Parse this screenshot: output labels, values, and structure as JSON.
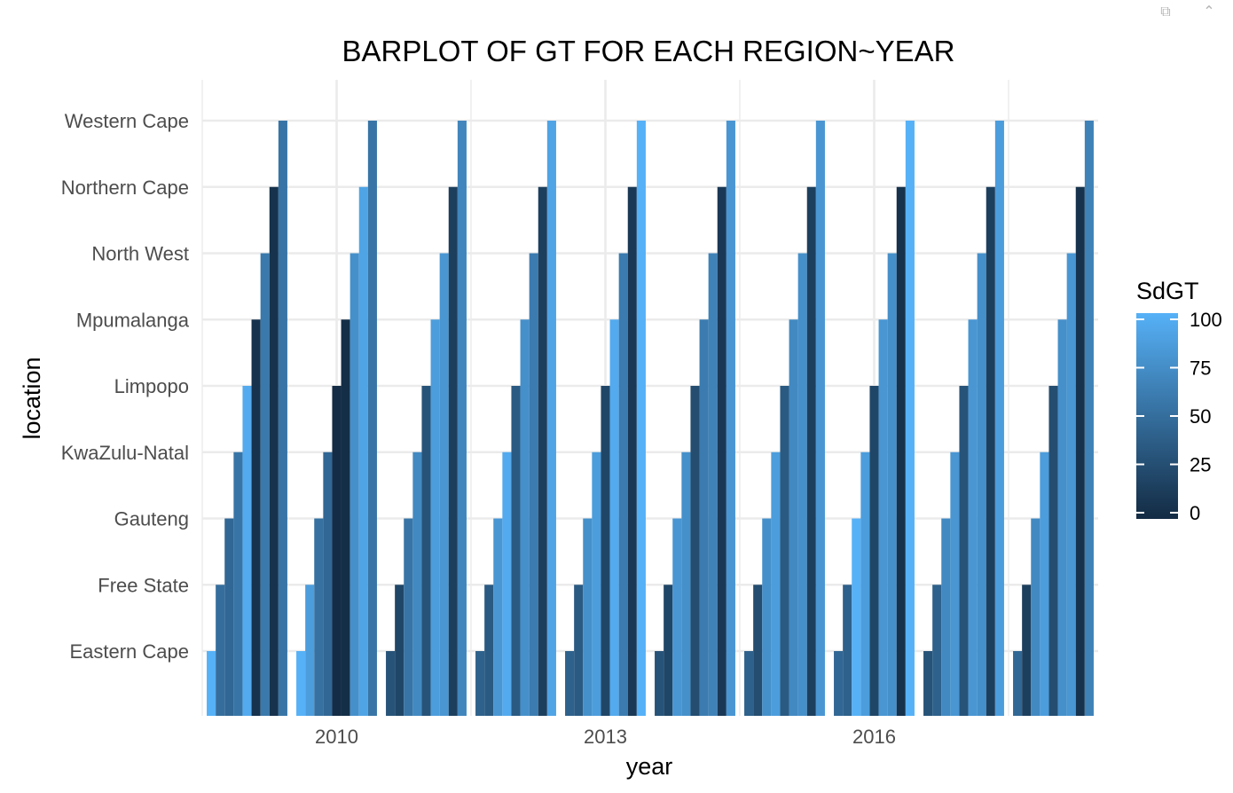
{
  "toolbar": {
    "popout_icon": "popout-window-icon",
    "collapse_icon": "chevron-double-up-icon"
  },
  "chart_data": {
    "type": "bar",
    "title": "BARPLOT OF GT FOR EACH REGION~YEAR",
    "xlabel": "year",
    "ylabel": "location",
    "categories": [
      "Eastern Cape",
      "Free State",
      "Gauteng",
      "KwaZulu-Natal",
      "Limpopo",
      "Mpumalanga",
      "North West",
      "Northern Cape",
      "Western Cape"
    ],
    "x_ticks": [
      2010,
      2013,
      2016
    ],
    "xlim": [
      2008.5,
      2018.5
    ],
    "grid": true,
    "colorbar": {
      "title": "SdGT",
      "ticks": [
        0,
        25,
        50,
        75,
        100
      ],
      "range": [
        0,
        100
      ],
      "low_color": "#132B43",
      "high_color": "#56B1F7"
    },
    "series": [
      {
        "year": 2009,
        "values": [
          100,
          50,
          45,
          55,
          95,
          5,
          58,
          5,
          55
        ]
      },
      {
        "year": 2010,
        "values": [
          100,
          85,
          52,
          45,
          1,
          2,
          75,
          90,
          55
        ]
      },
      {
        "year": 2011,
        "values": [
          30,
          20,
          55,
          70,
          30,
          85,
          80,
          15,
          68
        ]
      },
      {
        "year": 2012,
        "values": [
          40,
          35,
          80,
          95,
          35,
          75,
          60,
          15,
          90
        ]
      },
      {
        "year": 2013,
        "values": [
          40,
          35,
          75,
          85,
          20,
          95,
          60,
          10,
          100
        ]
      },
      {
        "year": 2014,
        "values": [
          30,
          20,
          80,
          75,
          25,
          60,
          65,
          10,
          80
        ]
      },
      {
        "year": 2015,
        "values": [
          40,
          25,
          75,
          85,
          35,
          70,
          75,
          15,
          80
        ]
      },
      {
        "year": 2016,
        "values": [
          45,
          40,
          100,
          85,
          20,
          80,
          75,
          5,
          100
        ]
      },
      {
        "year": 2017,
        "values": [
          30,
          40,
          70,
          80,
          30,
          80,
          75,
          15,
          85
        ]
      },
      {
        "year": 2018,
        "values": [
          45,
          15,
          70,
          85,
          25,
          75,
          80,
          5,
          65
        ]
      }
    ]
  }
}
